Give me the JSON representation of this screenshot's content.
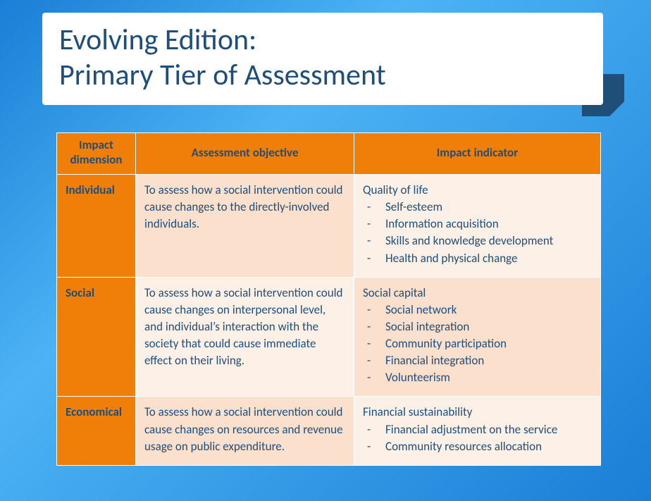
{
  "title_line1": "Evolving Edition:",
  "title_line2": "Primary Tier of Assessment",
  "colors": {
    "bg_gradient_from": "#1a7fd6",
    "bg_gradient_mid": "#4db3f5",
    "panel_bg": "#ffffff",
    "fold": "#1f4e79",
    "header_bg": "#f07f09",
    "dim_bg": "#f07f09",
    "cell_a": "#fbe0ce",
    "cell_b": "#fdf0e7",
    "text": "#1f4e79"
  },
  "table": {
    "headers": [
      "Impact dimension",
      "Assessment objective",
      "Impact indicator"
    ],
    "rows": [
      {
        "dimension": "Individual",
        "objective": "To assess how a social intervention could cause changes to the directly-involved individuals.",
        "indicator_head": "Quality of life",
        "indicator_items": [
          "Self-esteem",
          "Information acquisition",
          "Skills and knowledge development",
          "Health and physical change"
        ]
      },
      {
        "dimension": "Social",
        "objective": "To assess how a social intervention could cause changes on interpersonal level, and individual’s interaction with the society that could cause immediate effect on their living.",
        "indicator_head": "Social capital",
        "indicator_items": [
          "Social network",
          "Social integration",
          "Community participation",
          "Financial integration",
          "Volunteerism"
        ]
      },
      {
        "dimension": "Economical",
        "objective": "To assess how a social intervention could cause changes on resources and revenue usage on public expenditure.",
        "indicator_head": "Financial sustainability",
        "indicator_items": [
          "Financial adjustment on the service",
          "Community resources allocation"
        ]
      }
    ]
  }
}
